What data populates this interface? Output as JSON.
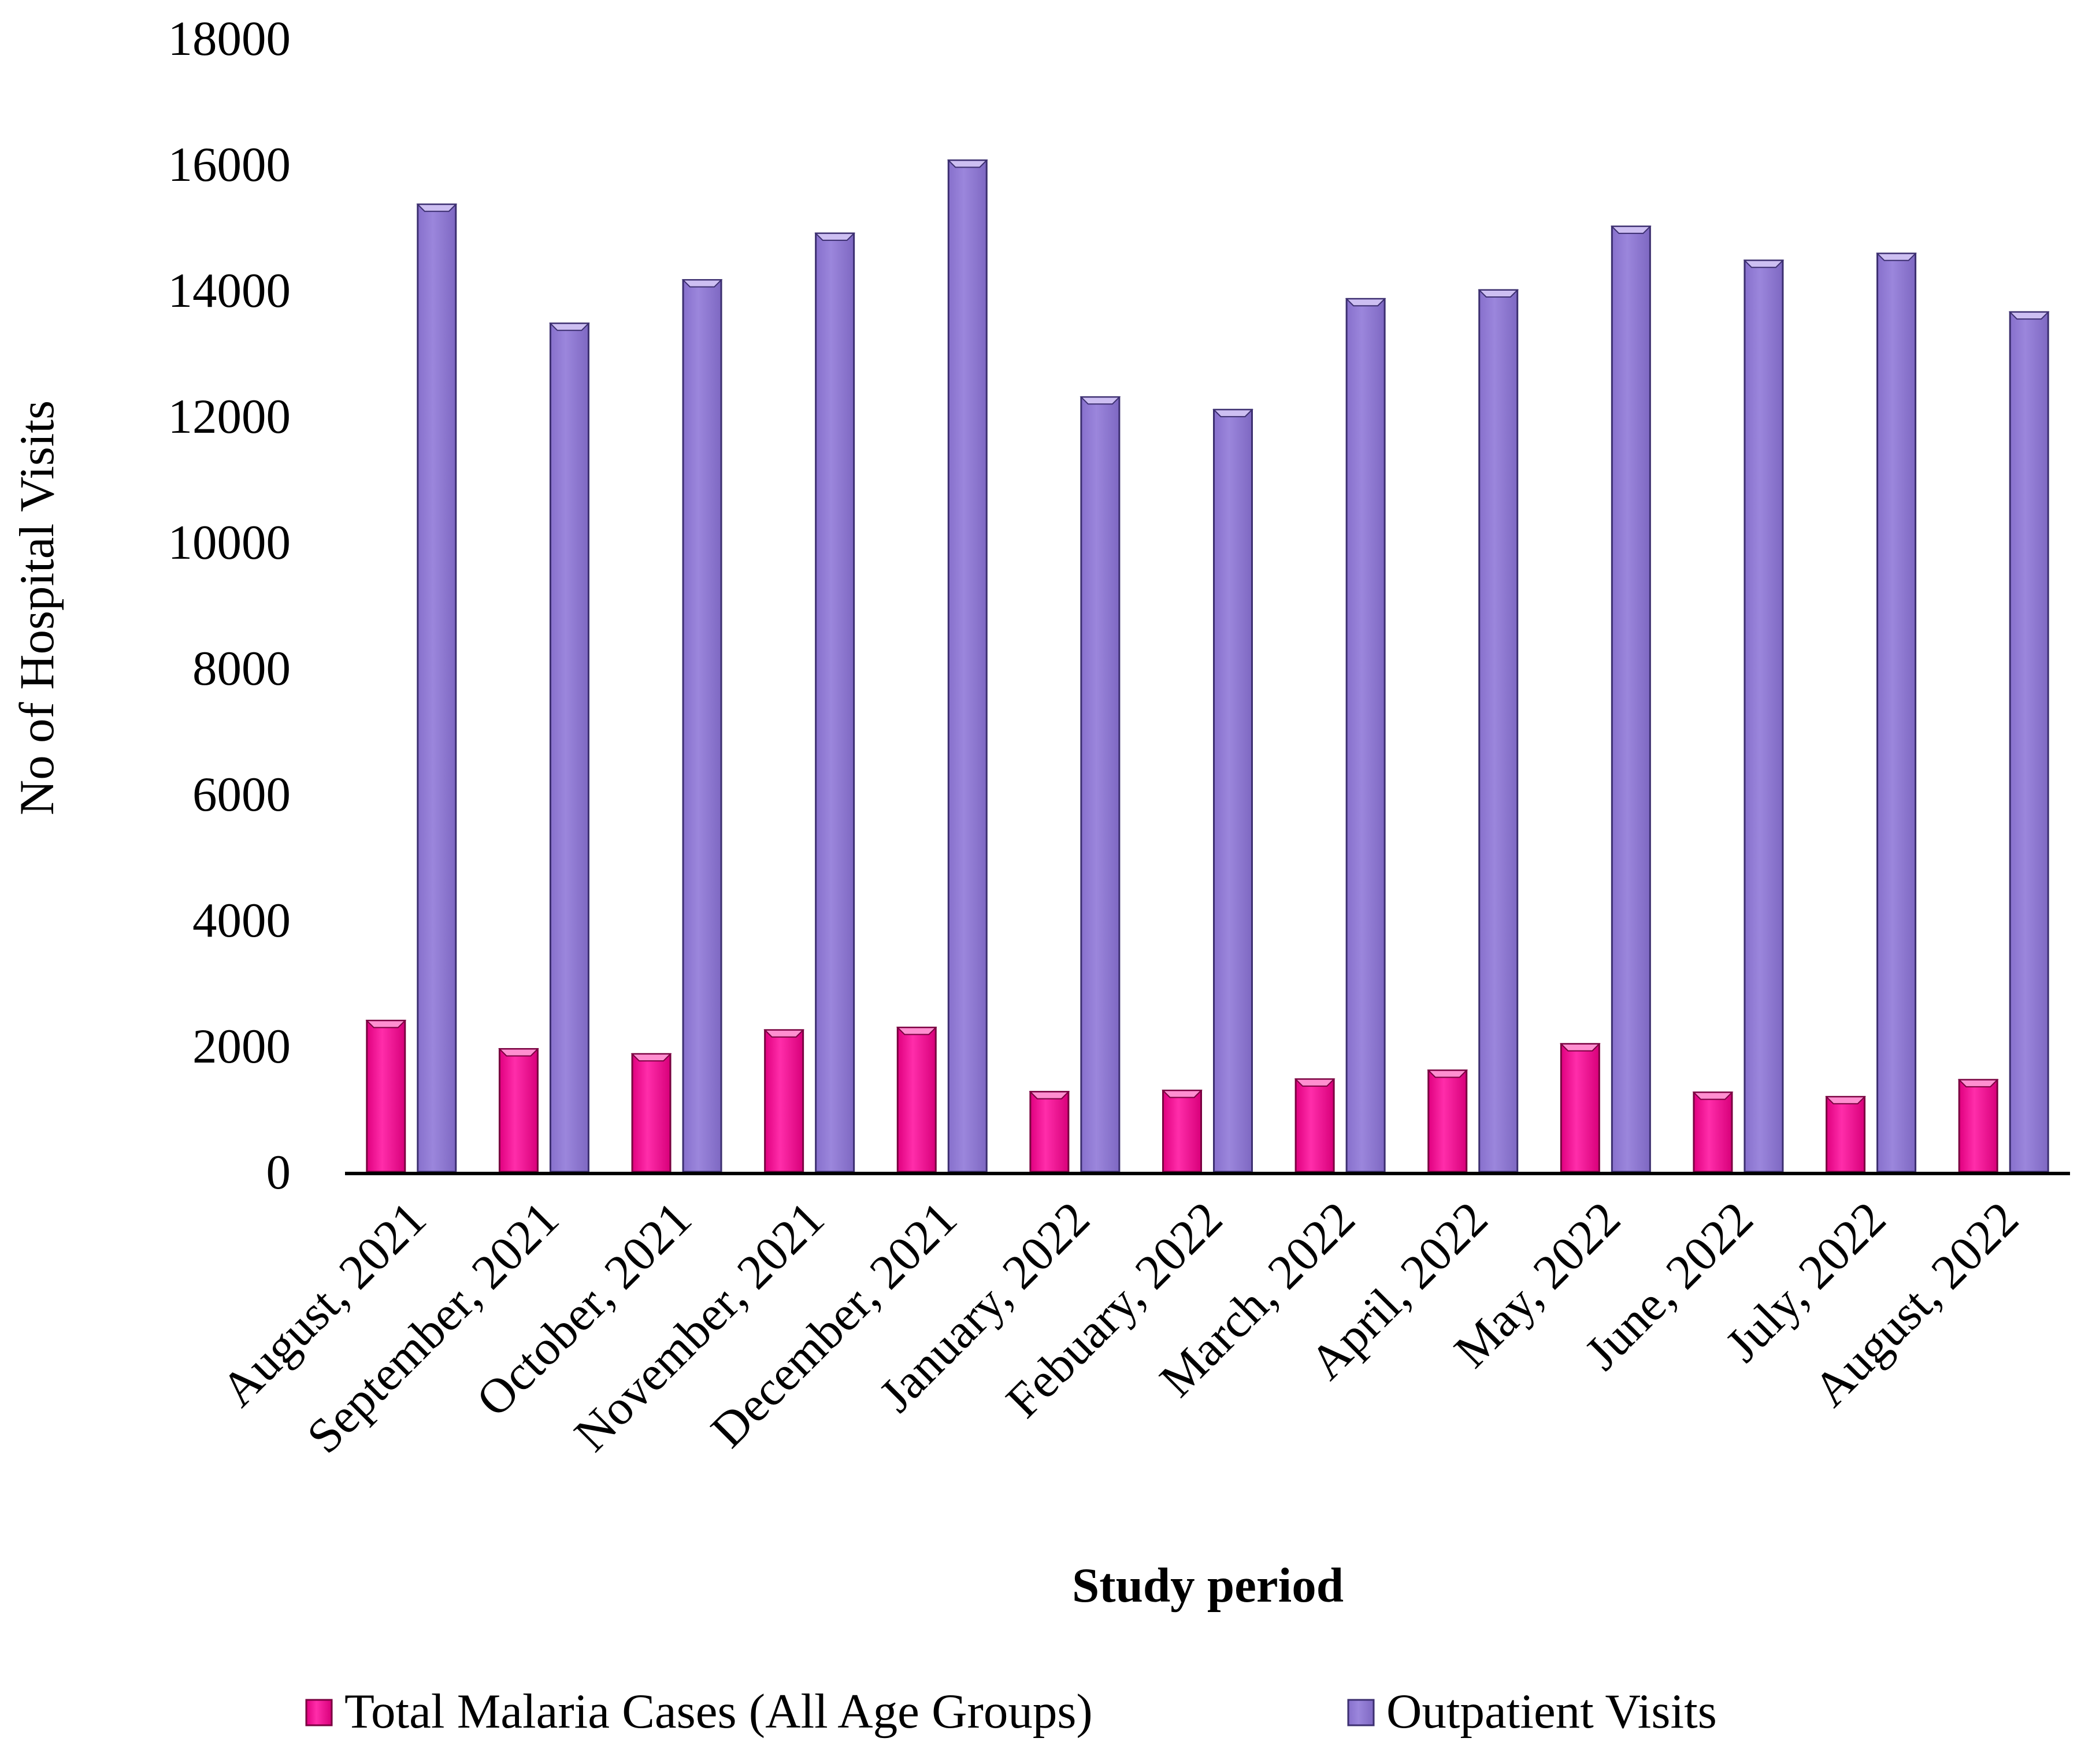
{
  "chart_data": {
    "type": "bar",
    "title": "",
    "xlabel": "Study period",
    "ylabel": "No of Hospital Visits",
    "ylim": [
      0,
      18000
    ],
    "yticks": [
      0,
      2000,
      4000,
      6000,
      8000,
      10000,
      12000,
      14000,
      16000,
      18000
    ],
    "grid": false,
    "legend_position": "bottom",
    "categories": [
      "August, 2021",
      "September, 2021",
      "October, 2021",
      "November, 2021",
      "December, 2021",
      "January, 2022",
      "Febuary, 2022",
      "March, 2022",
      "April, 2022",
      "May, 2022",
      "June, 2022",
      "July, 2022",
      "August, 2022"
    ],
    "series": [
      {
        "name": "Total Malaria Cases (All Age Groups)",
        "color": "#ff1ba0",
        "values": [
          2400,
          1950,
          1870,
          2250,
          2290,
          1270,
          1290,
          1470,
          1610,
          2030,
          1260,
          1190,
          1460
        ]
      },
      {
        "name": "Outpatient Visits",
        "color": "#9580d8",
        "values": [
          15360,
          13470,
          14160,
          14900,
          16060,
          12300,
          12100,
          13860,
          14000,
          15010,
          14470,
          14580,
          13650
        ]
      }
    ]
  }
}
